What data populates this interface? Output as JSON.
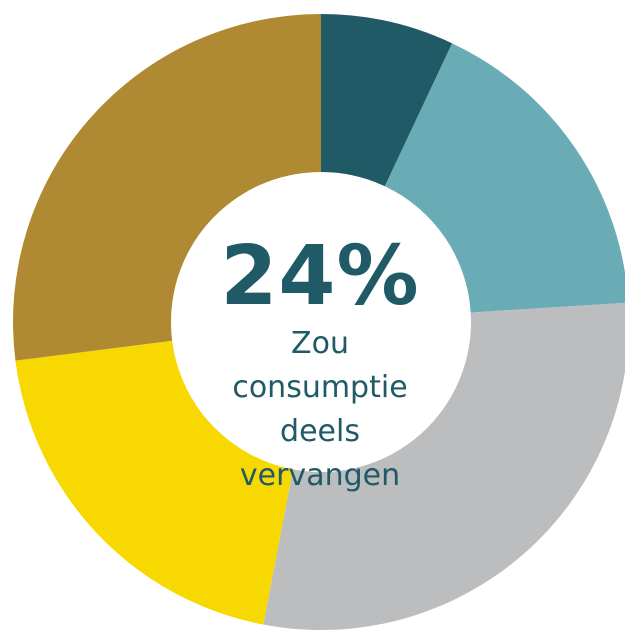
{
  "chart_data": {
    "type": "donut",
    "center_value": "24%",
    "center_text": "Zou consumptie deels vervangen",
    "values": [
      7,
      17,
      29,
      20,
      27
    ],
    "colors": [
      "#1f5a66",
      "#69acb5",
      "#bcbdbf",
      "#f7d800",
      "#b08a32"
    ]
  }
}
